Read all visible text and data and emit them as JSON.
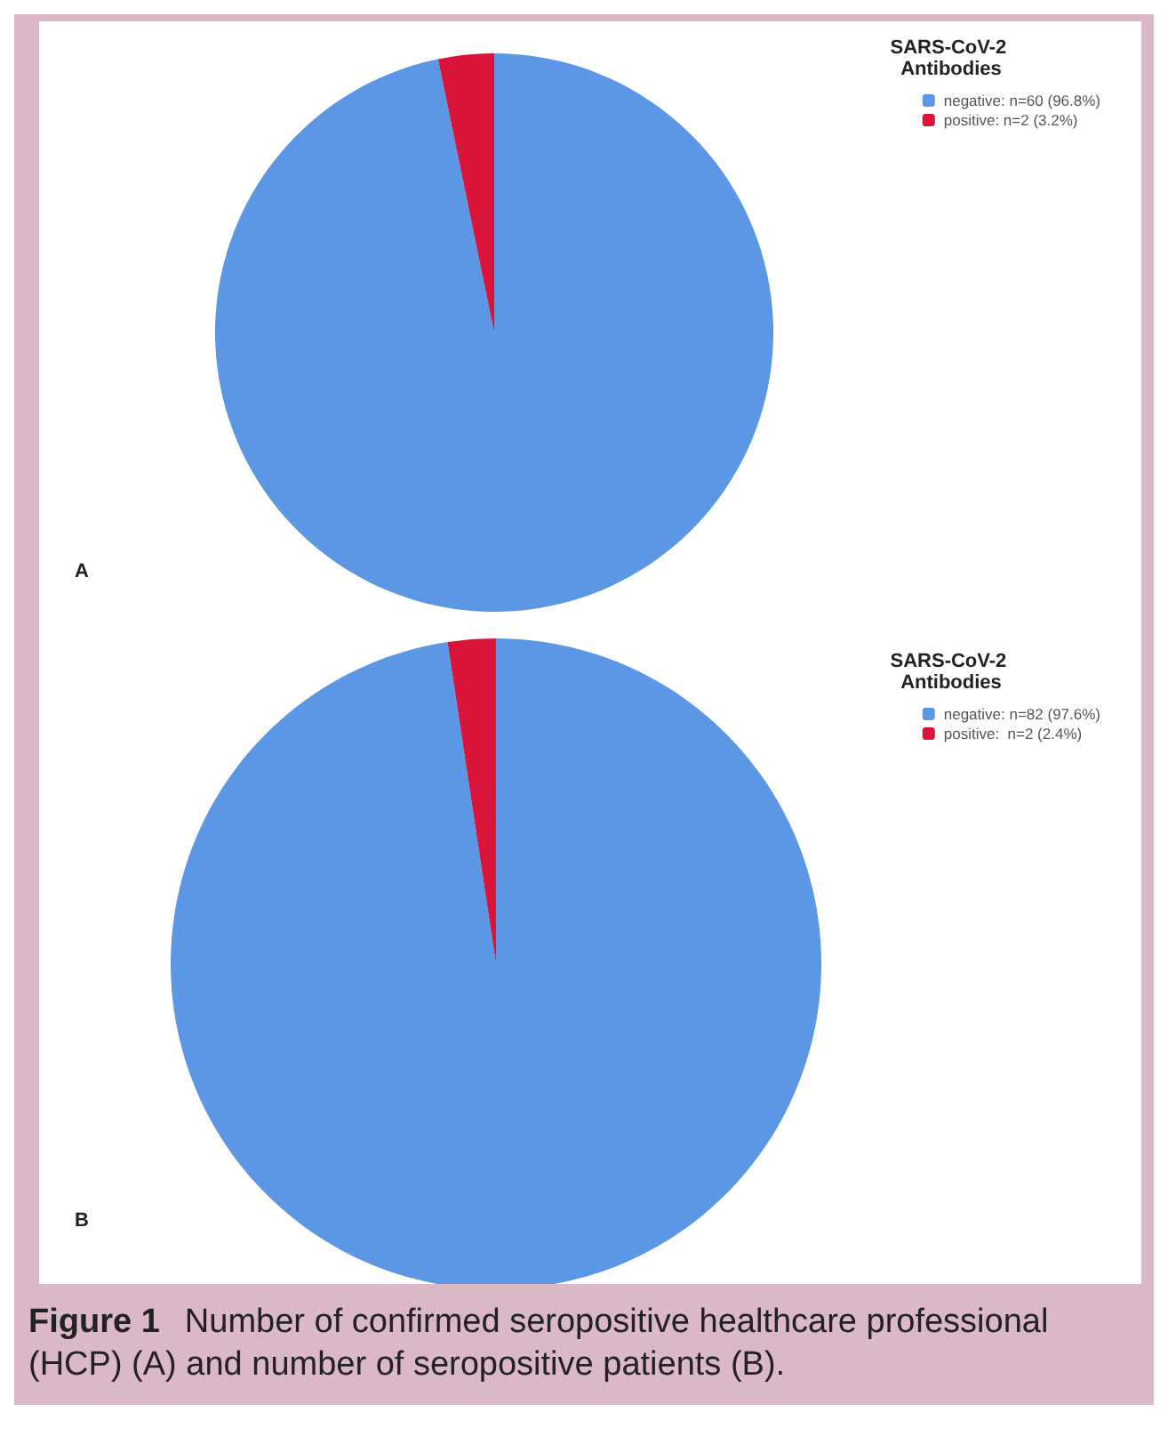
{
  "chart_data": [
    {
      "type": "pie",
      "legend_title": "SARS-CoV-2 Antibodies",
      "categories": [
        "negative: n=60 (96.8%)",
        "positive: n=2 (3.2%)"
      ],
      "values": [
        60,
        2
      ],
      "colors": [
        "#5b97e5",
        "#d8143a"
      ],
      "legend": "top right",
      "annotations": [
        "A"
      ]
    },
    {
      "type": "pie",
      "legend_title": "SARS-CoV-2 Antibodies",
      "categories": [
        "negative: n=82 (97.6%)",
        "positive:  n=2 (2.4%)"
      ],
      "values": [
        82,
        2
      ],
      "colors": [
        "#5b97e5",
        "#d8143a"
      ],
      "legend": "top right",
      "annotations": [
        "B",
        "Figure 1",
        "Number of confirmed seropositive healthcare professional (HCP) (A) and number of seropositive patients (B)."
      ]
    }
  ]
}
